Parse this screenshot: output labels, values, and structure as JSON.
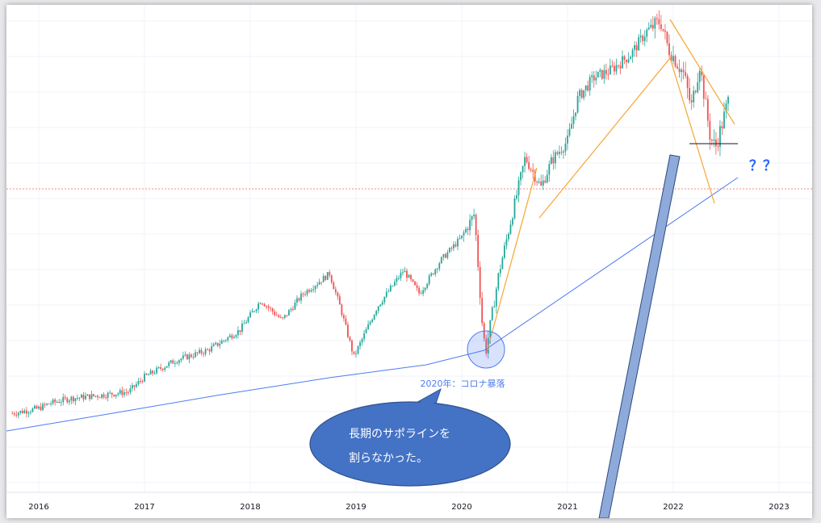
{
  "chart_data": {
    "type": "candlestick",
    "x_ticks": [
      "2016",
      "2017",
      "2018",
      "2019",
      "2020",
      "2021",
      "2022",
      "2023"
    ],
    "grid": true,
    "colors": {
      "up": "#26a69a",
      "down": "#ef5350",
      "support_line": "#4c7cf0",
      "pattern_lines": "#f7a531",
      "reference_dotted": "#f28b82",
      "callout_fill": "#4472c4",
      "arrow_fill": "#8eaadb",
      "question_marks": "#2962ff"
    },
    "price_path": [
      [
        2015.75,
        0.92
      ],
      [
        2016.0,
        0.935
      ],
      [
        2016.1,
        0.95
      ],
      [
        2016.3,
        0.965
      ],
      [
        2016.6,
        0.975
      ],
      [
        2016.85,
        0.985
      ],
      [
        2017.0,
        1.03
      ],
      [
        2017.3,
        1.08
      ],
      [
        2017.6,
        1.11
      ],
      [
        2017.9,
        1.17
      ],
      [
        2018.1,
        1.26
      ],
      [
        2018.3,
        1.2
      ],
      [
        2018.5,
        1.28
      ],
      [
        2018.75,
        1.34
      ],
      [
        2018.85,
        1.24
      ],
      [
        2018.98,
        1.09
      ],
      [
        2019.2,
        1.24
      ],
      [
        2019.45,
        1.35
      ],
      [
        2019.6,
        1.28
      ],
      [
        2019.8,
        1.38
      ],
      [
        2020.0,
        1.45
      ],
      [
        2020.12,
        1.52
      ],
      [
        2020.2,
        1.16
      ],
      [
        2020.23,
        1.11
      ],
      [
        2020.35,
        1.34
      ],
      [
        2020.6,
        1.69
      ],
      [
        2020.75,
        1.6
      ],
      [
        2020.85,
        1.68
      ],
      [
        2021.0,
        1.74
      ],
      [
        2021.1,
        1.87
      ],
      [
        2021.25,
        1.93
      ],
      [
        2021.4,
        1.95
      ],
      [
        2021.6,
        2.0
      ],
      [
        2021.75,
        2.07
      ],
      [
        2021.88,
        2.1
      ],
      [
        2021.95,
        2.02
      ],
      [
        2022.1,
        1.94
      ],
      [
        2022.17,
        1.84
      ],
      [
        2022.25,
        1.97
      ],
      [
        2022.35,
        1.75
      ],
      [
        2022.4,
        1.72
      ],
      [
        2022.47,
        1.8
      ],
      [
        2022.52,
        1.86
      ]
    ],
    "annotations": {
      "crash_label": "2020年：コロナ暴落",
      "callout_line1": "長期のサポラインを",
      "callout_line2": "割らなかった。",
      "question": "？？"
    }
  }
}
